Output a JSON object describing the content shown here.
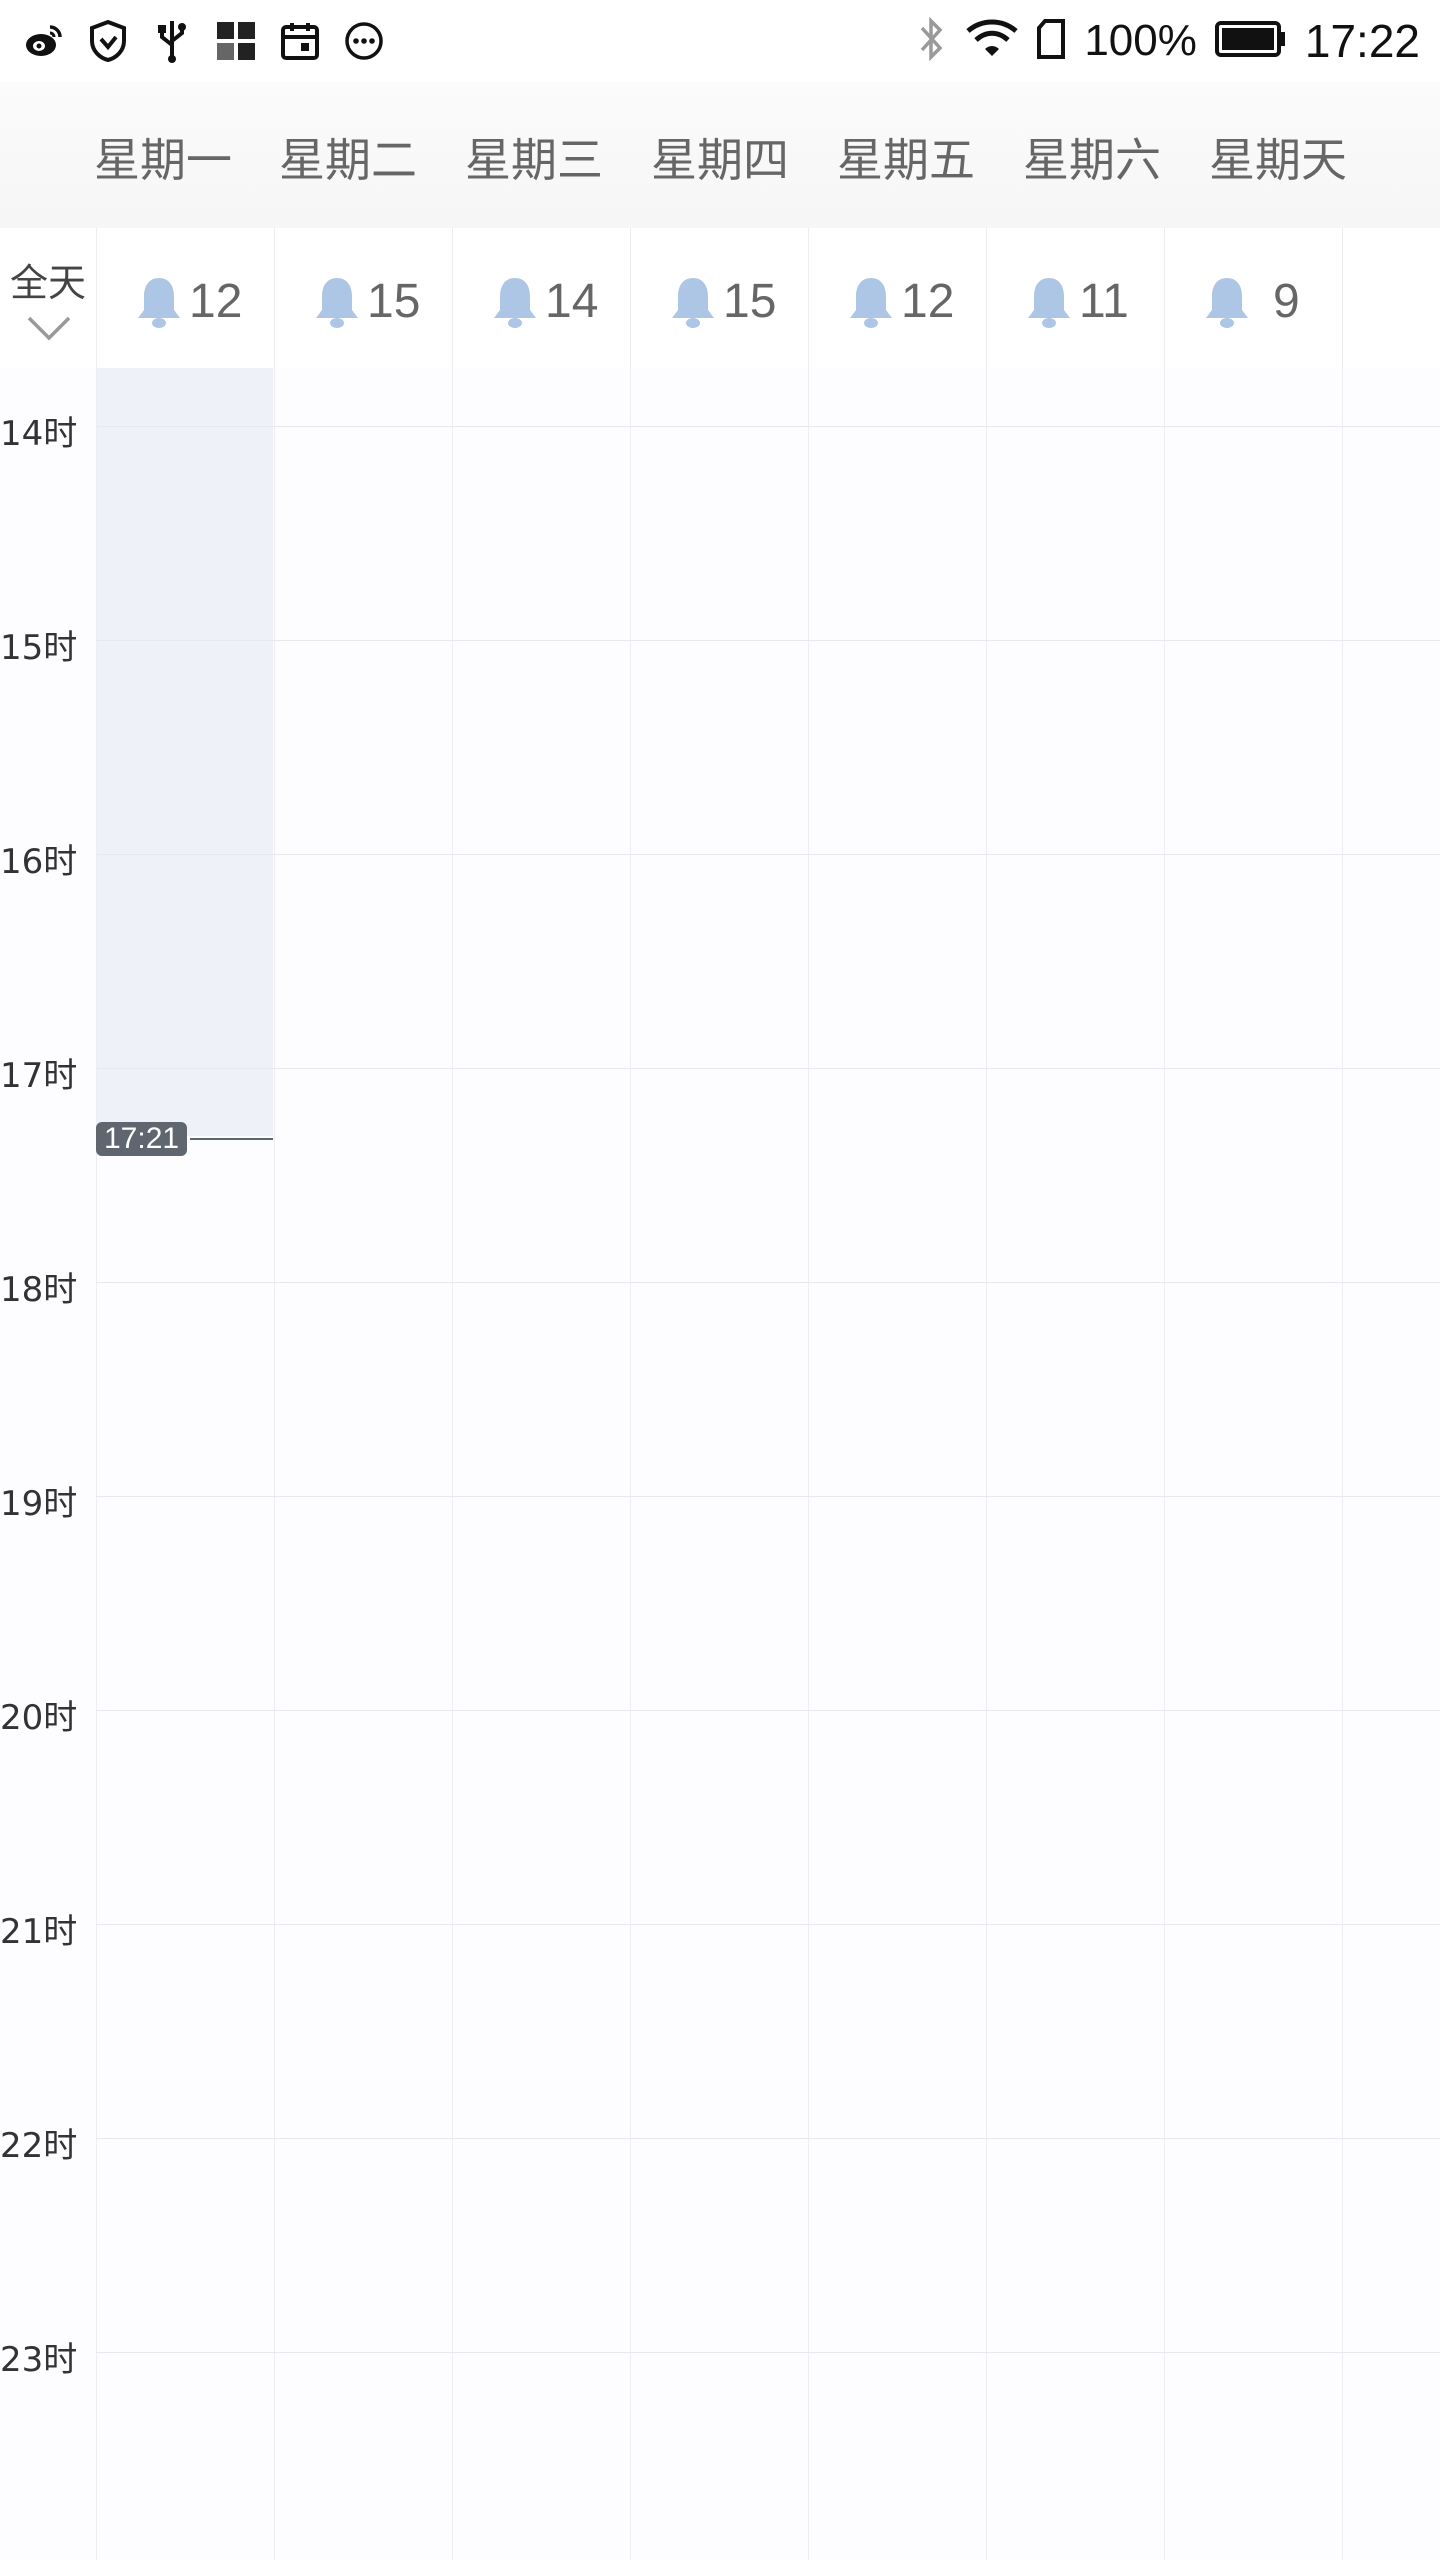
{
  "status_bar": {
    "left_icons": [
      "weibo-icon",
      "shield-icon",
      "usb-icon",
      "apps-icon",
      "calendar-icon",
      "more-icon"
    ],
    "right_icons": [
      "bluetooth-icon",
      "wifi-icon",
      "sim-icon",
      "battery-icon"
    ],
    "battery": "100%",
    "time": "17:22"
  },
  "weekdays": [
    "星期一",
    "星期二",
    "星期三",
    "星期四",
    "星期五",
    "星期六",
    "星期天"
  ],
  "all_day": {
    "label": "全天",
    "reminder_counts": [
      "12",
      "15",
      "14",
      "15",
      "12",
      "11",
      "9"
    ]
  },
  "hours": [
    "14时",
    "15时",
    "16时",
    "17时",
    "18时",
    "19时",
    "20时",
    "21时",
    "22时",
    "23时"
  ],
  "now_indicator": "17:21",
  "colors": {
    "bell": "#aec6e6",
    "today_column": "#eef2f8",
    "now_badge": "#5f6670"
  }
}
